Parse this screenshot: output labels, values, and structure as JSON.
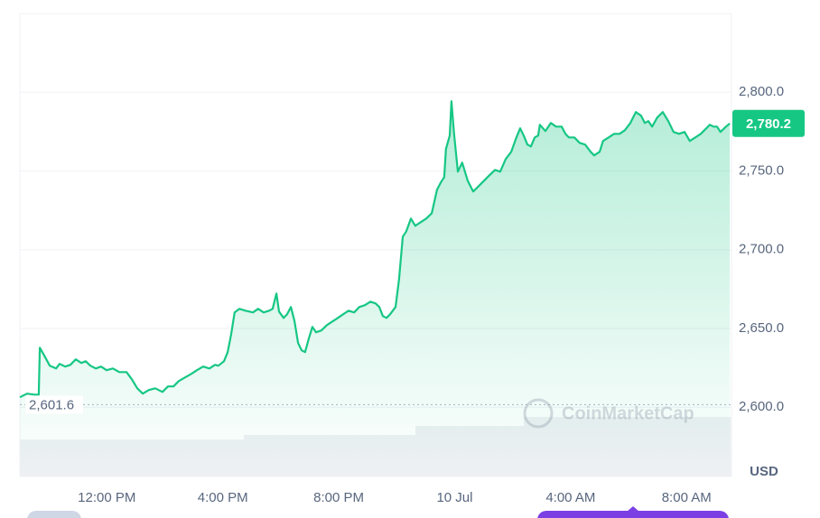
{
  "chart_data": {
    "type": "area",
    "series": [
      {
        "color": "#16c784",
        "x": [
          9.0,
          9.25,
          9.5,
          9.65,
          9.69,
          9.81,
          10.03,
          10.25,
          10.37,
          10.56,
          10.74,
          10.93,
          11.12,
          11.27,
          11.43,
          11.62,
          11.8,
          11.99,
          12.21,
          12.43,
          12.68,
          12.86,
          13.05,
          13.24,
          13.45,
          13.67,
          13.92,
          14.11,
          14.3,
          14.48,
          14.7,
          14.92,
          15.11,
          15.32,
          15.54,
          15.73,
          15.85,
          16.04,
          16.17,
          16.29,
          16.41,
          16.57,
          16.79,
          17.04,
          17.22,
          17.41,
          17.6,
          17.72,
          17.85,
          17.94,
          18.1,
          18.22,
          18.35,
          18.47,
          18.6,
          18.72,
          18.84,
          18.97,
          19.09,
          19.22,
          19.4,
          19.59,
          19.78,
          19.97,
          20.15,
          20.34,
          20.53,
          20.71,
          20.9,
          21.09,
          21.27,
          21.4,
          21.52,
          21.65,
          21.77,
          21.96,
          22.08,
          22.21,
          22.33,
          22.49,
          22.64,
          22.83,
          23.02,
          23.21,
          23.39,
          23.52,
          23.64,
          23.7,
          23.83,
          23.89,
          23.98,
          24.11,
          24.26,
          24.45,
          24.64,
          24.83,
          25.01,
          25.2,
          25.39,
          25.57,
          25.76,
          25.95,
          26.13,
          26.26,
          26.38,
          26.51,
          26.63,
          26.76,
          26.88,
          26.94,
          27.13,
          27.32,
          27.5,
          27.69,
          27.82,
          27.94,
          28.13,
          28.31,
          28.5,
          28.69,
          28.81,
          29.0,
          29.12,
          29.31,
          29.5,
          29.69,
          29.87,
          30.06,
          30.25,
          30.43,
          30.56,
          30.68,
          30.81,
          30.99,
          31.18,
          31.37,
          31.55,
          31.74,
          31.93,
          32.11,
          32.3,
          32.49,
          32.68,
          32.8,
          32.93,
          33.05,
          33.17,
          33.36,
          33.49
        ],
        "values": [
          2606.3,
          2608.6,
          2608,
          2608,
          2637.8,
          2633.8,
          2626.4,
          2624.6,
          2627.5,
          2625.8,
          2626.9,
          2630.4,
          2628.1,
          2629.2,
          2626.4,
          2624.6,
          2625.8,
          2623.5,
          2624.6,
          2622.3,
          2622.3,
          2617.8,
          2612,
          2608.6,
          2610.9,
          2612,
          2609.7,
          2613.2,
          2613.2,
          2616.6,
          2618.9,
          2621.2,
          2623.5,
          2625.8,
          2624.6,
          2626.9,
          2626.4,
          2629.2,
          2635,
          2646.4,
          2660.2,
          2662.5,
          2661.3,
          2660.2,
          2662.5,
          2660.2,
          2661.3,
          2662.5,
          2672.2,
          2660.7,
          2656.7,
          2659,
          2663.6,
          2655,
          2640.7,
          2636.1,
          2635,
          2643.6,
          2651,
          2647.6,
          2648.7,
          2652.1,
          2654.4,
          2656.7,
          2659,
          2661.3,
          2660.2,
          2663.6,
          2664.8,
          2667,
          2665.9,
          2663.6,
          2657.9,
          2656.7,
          2659,
          2663.6,
          2680.8,
          2708.3,
          2711.7,
          2719.8,
          2715.2,
          2717.5,
          2719.8,
          2723.2,
          2738.1,
          2742.7,
          2746.1,
          2763.9,
          2772.5,
          2794.3,
          2773.6,
          2749.6,
          2755.3,
          2743.8,
          2737,
          2740.4,
          2743.8,
          2747.3,
          2750.7,
          2749.6,
          2757.6,
          2762.2,
          2771.3,
          2777.1,
          2772.5,
          2766.8,
          2765.6,
          2771.3,
          2772.5,
          2779.4,
          2775.4,
          2780.5,
          2778.2,
          2778.2,
          2773.6,
          2771.3,
          2771.3,
          2767.9,
          2766.8,
          2762.2,
          2759.9,
          2762.2,
          2769.1,
          2771.3,
          2773.6,
          2773.6,
          2775.9,
          2780.5,
          2787.4,
          2785.1,
          2780.5,
          2781.7,
          2778.2,
          2784,
          2787.4,
          2781.7,
          2774.8,
          2773.6,
          2774.8,
          2769.1,
          2771.3,
          2773.6,
          2777.1,
          2779.4,
          2778.2,
          2778.2,
          2774.8,
          2778.2,
          2780.2
        ]
      }
    ],
    "xlim": [
      9.0,
      33.55
    ],
    "xticks": [
      {
        "value": 12,
        "label": "12:00 PM"
      },
      {
        "value": 16,
        "label": "4:00 PM"
      },
      {
        "value": 20,
        "label": "8:00 PM"
      },
      {
        "value": 24,
        "label": "10 Jul"
      },
      {
        "value": 28,
        "label": "4:00 AM"
      },
      {
        "value": 32,
        "label": "8:00 AM"
      }
    ],
    "ylim": [
      2556,
      2850
    ],
    "yticks": [
      {
        "value": 2600,
        "label": "2,600.0"
      },
      {
        "value": 2650,
        "label": "2,650.0"
      },
      {
        "value": 2700,
        "label": "2,700.0"
      },
      {
        "value": 2750,
        "label": "2,750.0"
      },
      {
        "value": 2800,
        "label": "2,800.0"
      }
    ],
    "y_label": "USD",
    "reference": {
      "value": 2601.6,
      "label": "2,601.6"
    },
    "last_price": {
      "value": 2780.2,
      "label": "2,780.2"
    },
    "watermark": "CoinMarketCap",
    "grid": true
  }
}
